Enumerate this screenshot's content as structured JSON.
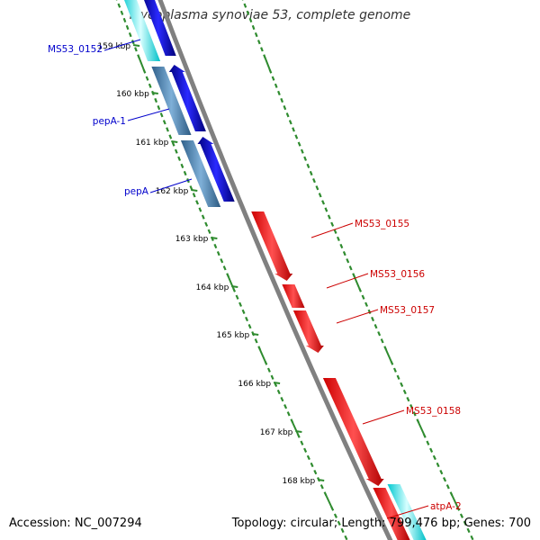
{
  "title": "Mycoplasma synoviae 53, complete genome",
  "accession": "Accession: NC_007294",
  "topology": "Topology: circular; Length: 799,476 bp; Genes: 700",
  "ticks": [
    "159 kbp",
    "160 kbp",
    "161 kbp",
    "162 kbp",
    "163 kbp",
    "164 kbp",
    "165 kbp",
    "166 kbp",
    "167 kbp",
    "168 kbp"
  ],
  "gene_labels_left": [
    "MS53_0152",
    "pepA-1",
    "pepA"
  ],
  "gene_labels_right": [
    "MS53_0155",
    "MS53_0156",
    "MS53_0157",
    "MS53_0158",
    "atpA-2"
  ],
  "colors": {
    "backbone": "#808080",
    "tick": "#2e8b2e",
    "forward_gene": "#0000e0",
    "reverse_gene": "#ff0000",
    "rna_gene": "#4682b4",
    "cyan_gene": "#00e5ee",
    "left_label": "#0000cc",
    "right_label": "#cc0000"
  }
}
